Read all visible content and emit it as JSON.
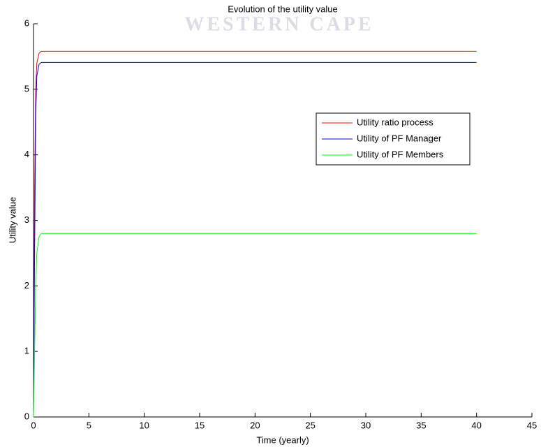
{
  "chart_data": {
    "type": "line",
    "title": "Evolution of the utility value",
    "watermark": "WESTERN CAPE",
    "xlabel": "Time (yearly)",
    "ylabel": "Utility value",
    "x": [
      0,
      0.1,
      0.2,
      0.3,
      0.5,
      0.7,
      1,
      40
    ],
    "series": [
      {
        "name": "Utility ratio process",
        "color": "#ff0000",
        "values": [
          0,
          3.5,
          5.0,
          5.4,
          5.55,
          5.58,
          5.58,
          5.58
        ]
      },
      {
        "name": "Utility of PF Manager",
        "color": "#0000ff",
        "values": [
          0,
          2.5,
          4.6,
          5.2,
          5.38,
          5.41,
          5.41,
          5.41
        ]
      },
      {
        "name": "Utility of PF Members",
        "color": "#00ff00",
        "values": [
          0,
          1.0,
          2.0,
          2.5,
          2.75,
          2.8,
          2.8,
          2.8
        ]
      }
    ],
    "xlim": [
      0,
      45
    ],
    "xticks": [
      0,
      5,
      10,
      15,
      20,
      25,
      30,
      35,
      40,
      45
    ],
    "ylim": [
      0,
      6
    ],
    "yticks": [
      0,
      1,
      2,
      3,
      4,
      5,
      6
    ],
    "legend": "center right"
  }
}
